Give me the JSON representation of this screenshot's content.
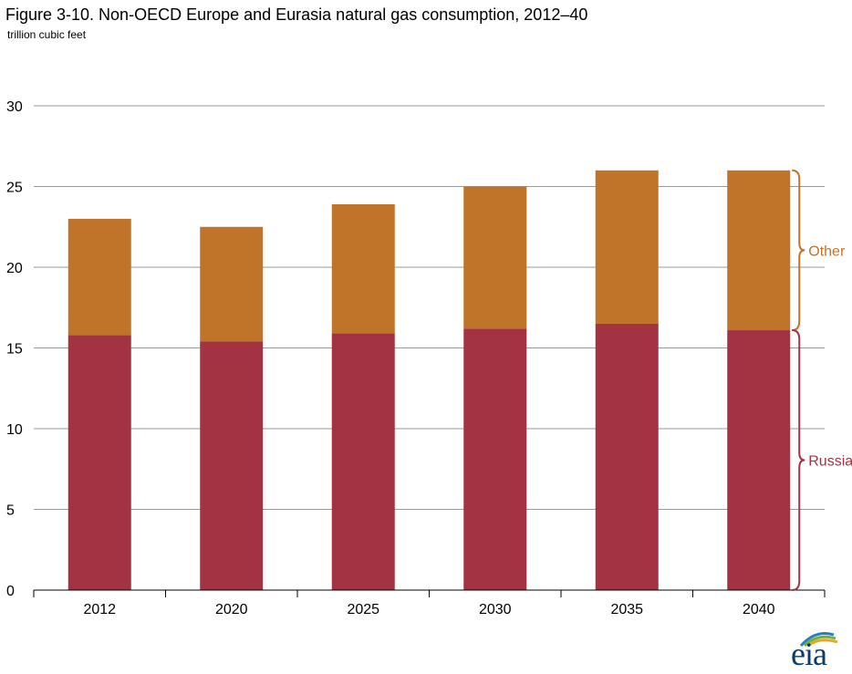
{
  "header": {
    "title": "Figure 3-10. Non-OECD Europe and Eurasia natural gas consumption, 2012–40",
    "subtitle": "trillion cubic feet"
  },
  "colors": {
    "russia": "#a33342",
    "other": "#bf742a",
    "grid": "#9a9a9a",
    "axis": "#000000"
  },
  "chart_data": {
    "type": "bar",
    "stacked": true,
    "title": "Figure 3-10. Non-OECD Europe and Eurasia natural gas consumption, 2012–40",
    "ylabel": "trillion cubic feet",
    "ylim": [
      0,
      30
    ],
    "yticks": [
      0,
      5,
      10,
      15,
      20,
      25,
      30
    ],
    "grid": true,
    "categories": [
      "2012",
      "2020",
      "2025",
      "2030",
      "2035",
      "2040"
    ],
    "series": [
      {
        "name": "Russia",
        "values": [
          15.8,
          15.4,
          15.9,
          16.2,
          16.5,
          16.1
        ]
      },
      {
        "name": "Other",
        "values": [
          7.2,
          7.1,
          8.0,
          8.8,
          9.5,
          9.9
        ]
      }
    ],
    "annotations": [
      {
        "text": "Other",
        "series": "Other"
      },
      {
        "text": "Russia",
        "series": "Russia"
      }
    ]
  },
  "logo": {
    "text": "eia",
    "icon": "eia-logo-icon"
  }
}
